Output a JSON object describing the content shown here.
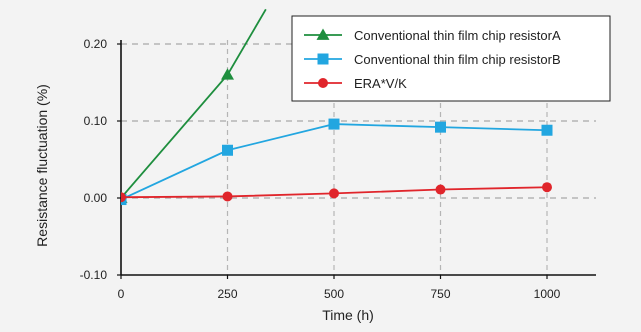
{
  "chart_data": {
    "type": "line",
    "title": "",
    "xlabel": "Time (h)",
    "ylabel": "Resistance fluctuation (%)",
    "xlim": [
      0,
      1100
    ],
    "ylim": [
      -0.1,
      0.24
    ],
    "x_ticks": [
      0,
      250,
      500,
      750,
      1000
    ],
    "x_tick_labels": [
      "0",
      "250",
      "500",
      "750",
      "1000"
    ],
    "y_ticks": [
      -0.1,
      0.0,
      0.1,
      0.2
    ],
    "y_tick_labels": [
      "-0.10",
      "0.00",
      "0.10",
      "0.20"
    ],
    "grid": "dashed, at ticks (y: 0.00, 0.10, 0.20; x: 250, 500, 750, 1000)",
    "legend_position": "top-right",
    "series": [
      {
        "name": "Conventional thin film chip resistorA",
        "color": "#1e8e3e",
        "marker": "triangle",
        "x": [
          0,
          250,
          340
        ],
        "y": [
          0.0,
          0.16,
          0.245
        ],
        "marker_x": [
          0,
          250
        ]
      },
      {
        "name": "Conventional thin film chip resistorB",
        "color": "#22a6e0",
        "marker": "square",
        "x": [
          0,
          250,
          500,
          750,
          1000
        ],
        "y": [
          -0.002,
          0.062,
          0.096,
          0.092,
          0.088
        ]
      },
      {
        "name": "ERA*V/K",
        "color": "#e0252b",
        "marker": "circle",
        "x": [
          0,
          250,
          500,
          750,
          1000
        ],
        "y": [
          0.001,
          0.002,
          0.006,
          0.011,
          0.014
        ]
      }
    ]
  }
}
